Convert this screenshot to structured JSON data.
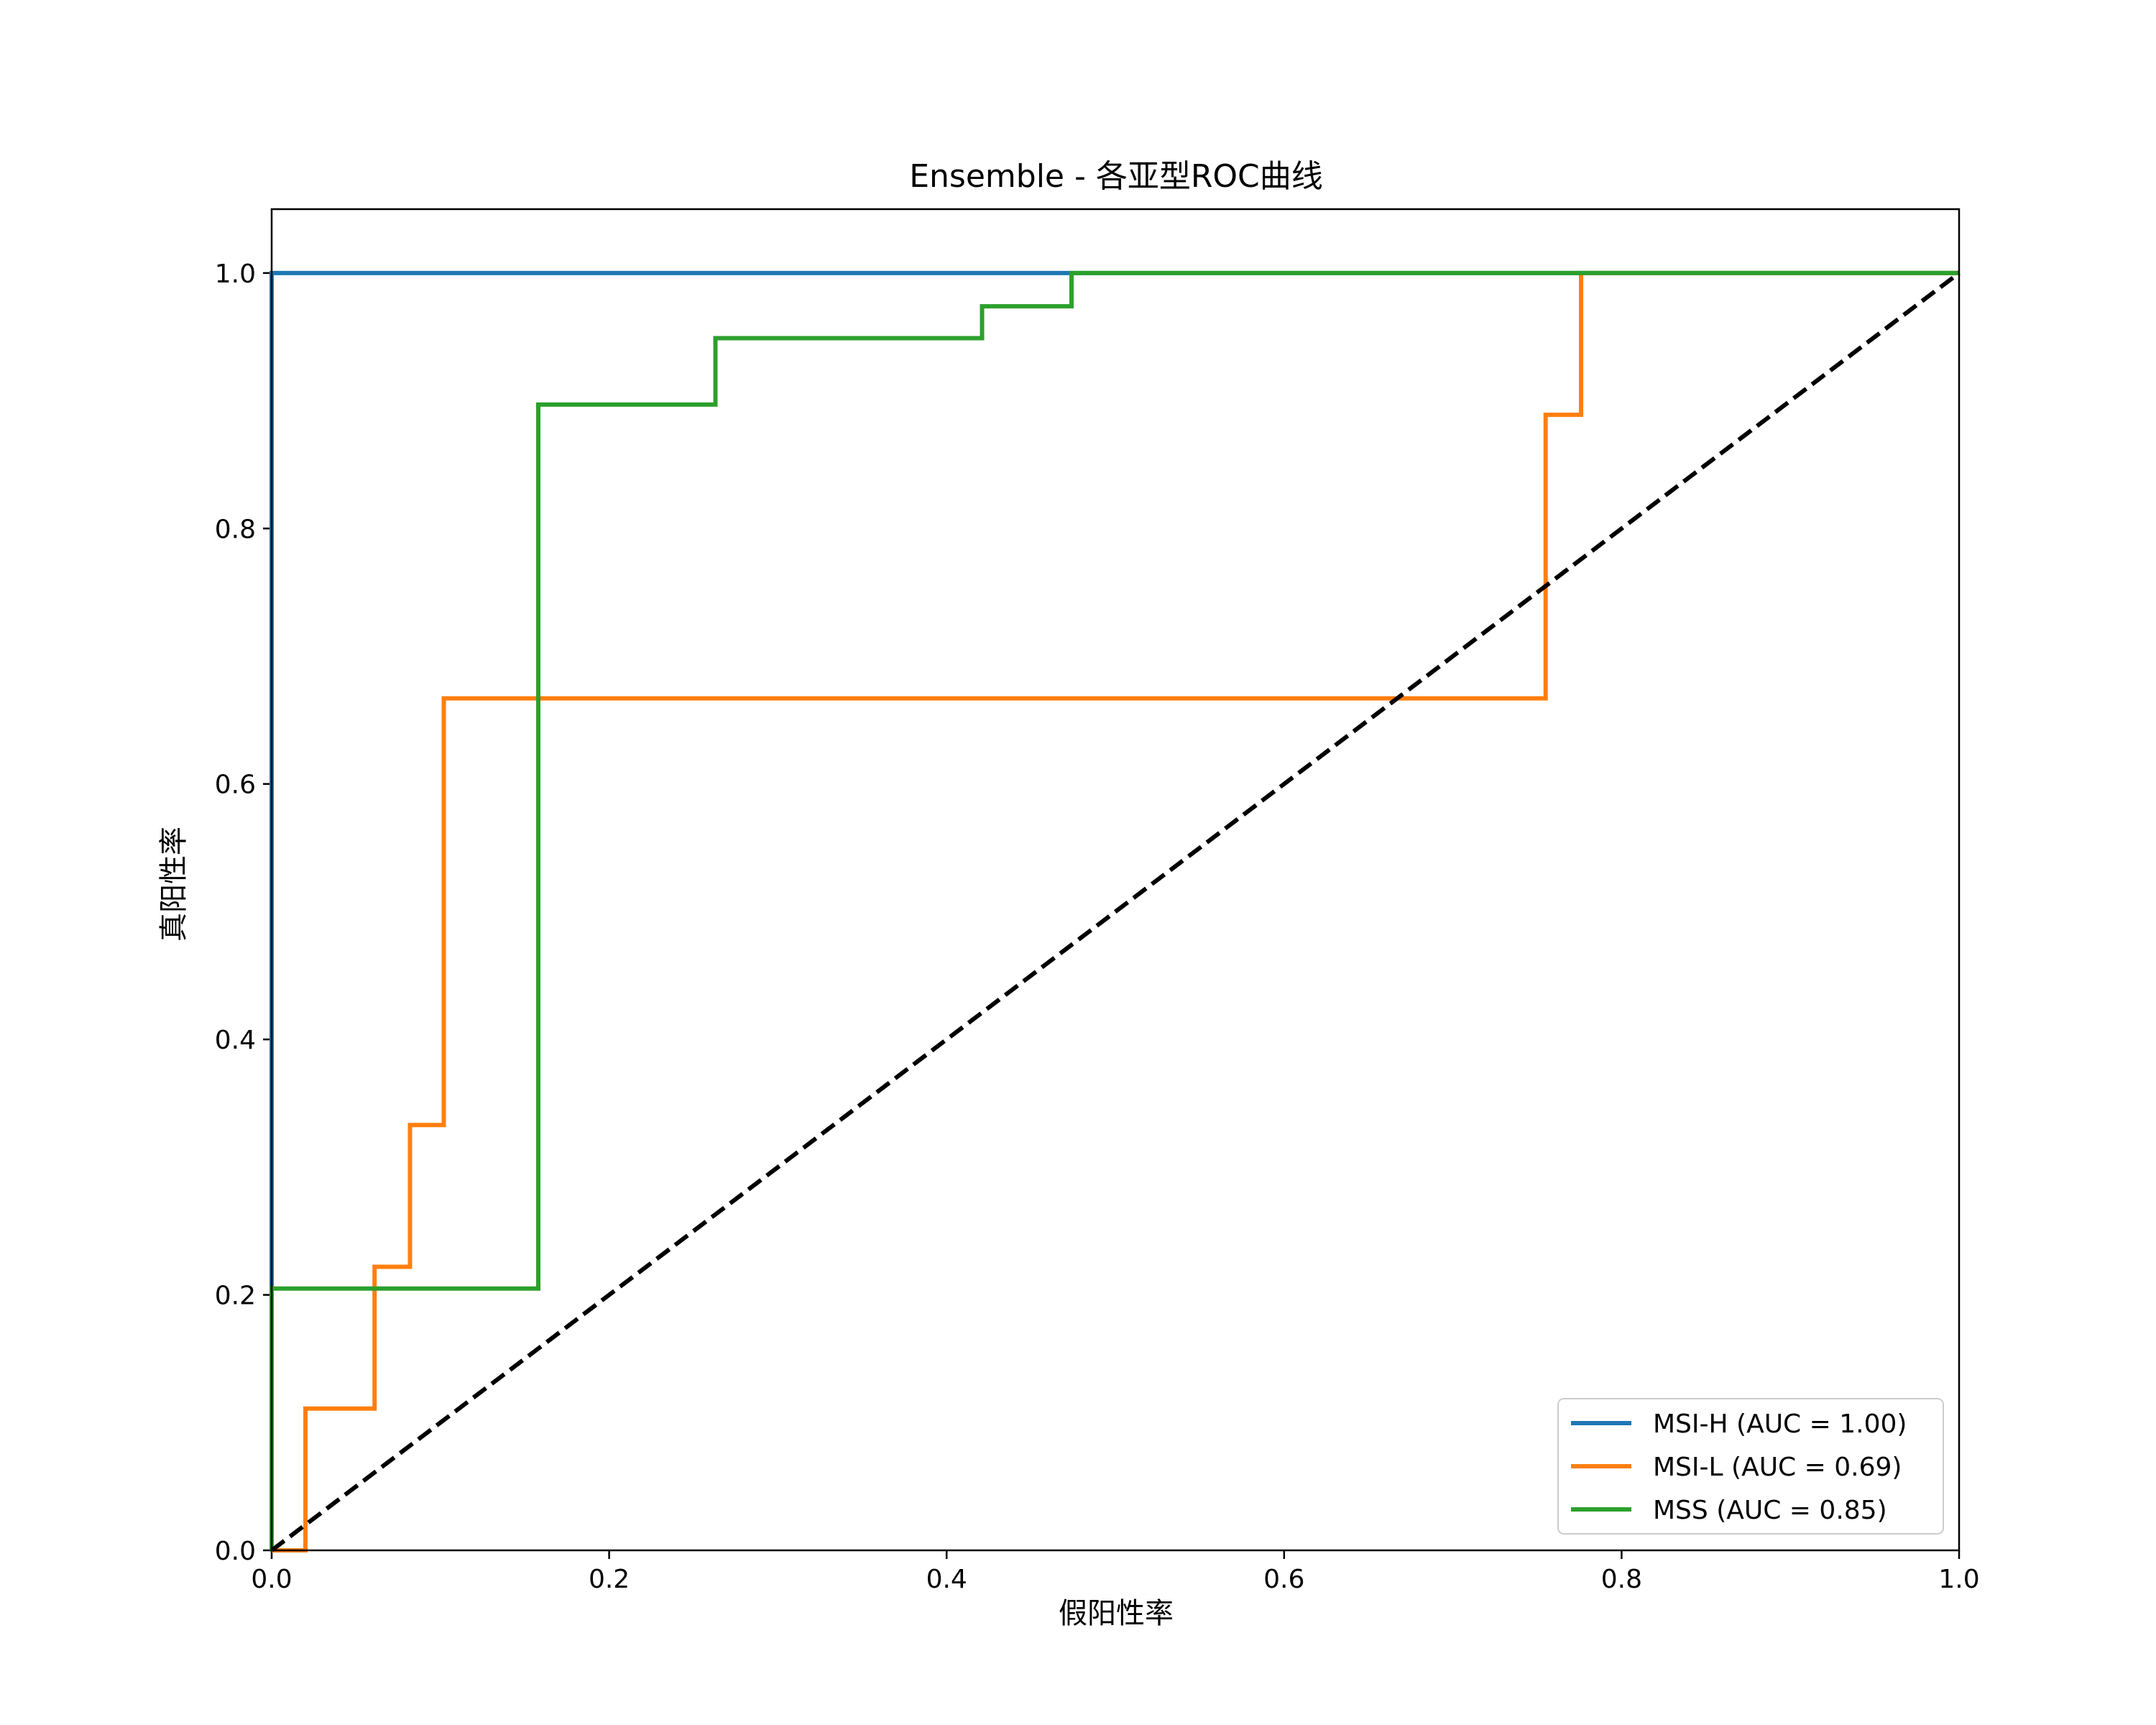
{
  "chart_data": {
    "type": "line",
    "title": "Ensemble - 各亚型ROC曲线",
    "xlabel": "假阳性率",
    "ylabel": "真阳性率",
    "xlim": [
      0.0,
      1.0
    ],
    "ylim": [
      0.0,
      1.05
    ],
    "xticks": [
      0.0,
      0.2,
      0.4,
      0.6,
      0.8,
      1.0
    ],
    "xtick_labels": [
      "0.0",
      "0.2",
      "0.4",
      "0.6",
      "0.8",
      "1.0"
    ],
    "yticks": [
      0.0,
      0.2,
      0.4,
      0.6,
      0.8,
      1.0
    ],
    "ytick_labels": [
      "0.0",
      "0.2",
      "0.4",
      "0.6",
      "0.8",
      "1.0"
    ],
    "grid": false,
    "legend_position": "lower-right",
    "series": [
      {
        "name": "MSI-H (AUC = 1.00)",
        "color": "#1f77b4",
        "points": [
          [
            0.0,
            0.0
          ],
          [
            0.0,
            1.0
          ],
          [
            1.0,
            1.0
          ]
        ]
      },
      {
        "name": "MSI-L (AUC = 0.69)",
        "color": "#ff7f0e",
        "points": [
          [
            0.0,
            0.0
          ],
          [
            0.02,
            0.0
          ],
          [
            0.02,
            0.111
          ],
          [
            0.061,
            0.111
          ],
          [
            0.061,
            0.222
          ],
          [
            0.082,
            0.222
          ],
          [
            0.082,
            0.333
          ],
          [
            0.102,
            0.333
          ],
          [
            0.102,
            0.667
          ],
          [
            0.755,
            0.667
          ],
          [
            0.755,
            0.889
          ],
          [
            0.776,
            0.889
          ],
          [
            0.776,
            1.0
          ],
          [
            1.0,
            1.0
          ]
        ]
      },
      {
        "name": "MSS (AUC = 0.85)",
        "color": "#2ca02c",
        "points": [
          [
            0.0,
            0.0
          ],
          [
            0.0,
            0.205
          ],
          [
            0.158,
            0.205
          ],
          [
            0.158,
            0.897
          ],
          [
            0.263,
            0.897
          ],
          [
            0.263,
            0.949
          ],
          [
            0.421,
            0.949
          ],
          [
            0.421,
            0.974
          ],
          [
            0.474,
            0.974
          ],
          [
            0.474,
            1.0
          ],
          [
            1.0,
            1.0
          ]
        ]
      }
    ],
    "reference_line": {
      "color": "#000000",
      "style": "dashed",
      "points": [
        [
          0.0,
          0.0
        ],
        [
          1.0,
          1.0
        ]
      ]
    }
  }
}
